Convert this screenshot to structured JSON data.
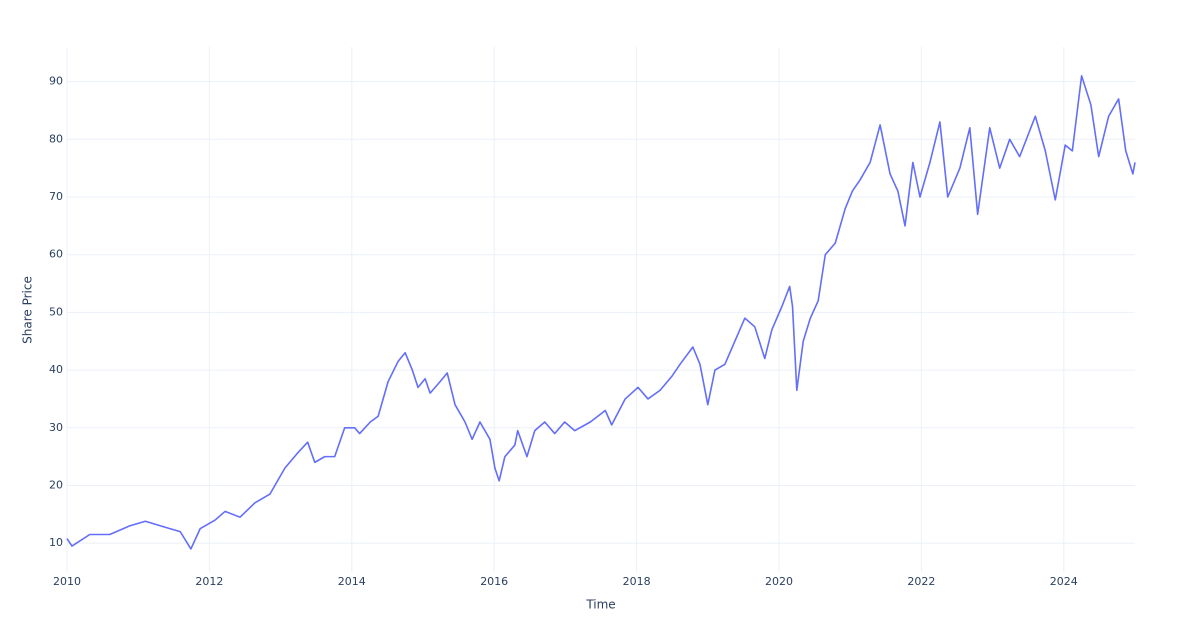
{
  "chart_data": {
    "type": "line",
    "xlabel": "Time",
    "ylabel": "Share Price",
    "xlim": [
      2010,
      2025
    ],
    "ylim": [
      5,
      96
    ],
    "xticks": [
      2010,
      2012,
      2014,
      2016,
      2018,
      2020,
      2022,
      2024
    ],
    "yticks": [
      10,
      20,
      30,
      40,
      50,
      60,
      70,
      80,
      90
    ],
    "grid": true,
    "x": [
      2010.0,
      2010.07,
      2010.32,
      2010.6,
      2010.88,
      2011.1,
      2011.45,
      2011.59,
      2011.74,
      2011.87,
      2012.08,
      2012.22,
      2012.43,
      2012.64,
      2012.85,
      2013.06,
      2013.23,
      2013.38,
      2013.48,
      2013.62,
      2013.76,
      2013.9,
      2014.04,
      2014.11,
      2014.26,
      2014.37,
      2014.51,
      2014.65,
      2014.75,
      2014.85,
      2014.93,
      2015.03,
      2015.1,
      2015.24,
      2015.34,
      2015.45,
      2015.59,
      2015.69,
      2015.8,
      2015.94,
      2016.01,
      2016.07,
      2016.15,
      2016.29,
      2016.33,
      2016.46,
      2016.57,
      2016.71,
      2016.85,
      2016.99,
      2017.13,
      2017.35,
      2017.56,
      2017.65,
      2017.84,
      2018.02,
      2018.16,
      2018.33,
      2018.5,
      2018.61,
      2018.79,
      2018.89,
      2019.0,
      2019.1,
      2019.24,
      2019.38,
      2019.52,
      2019.66,
      2019.8,
      2019.9,
      2020.04,
      2020.15,
      2020.19,
      2020.25,
      2020.34,
      2020.44,
      2020.55,
      2020.65,
      2020.79,
      2020.93,
      2021.03,
      2021.14,
      2021.28,
      2021.42,
      2021.56,
      2021.67,
      2021.77,
      2021.88,
      2021.98,
      2022.12,
      2022.26,
      2022.37,
      2022.54,
      2022.68,
      2022.79,
      2022.96,
      2023.1,
      2023.24,
      2023.38,
      2023.6,
      2023.74,
      2023.88,
      2024.02,
      2024.12,
      2024.25,
      2024.38,
      2024.49,
      2024.63,
      2024.77,
      2024.87,
      2024.97,
      2025.0
    ],
    "series": [
      {
        "color": "#636efa",
        "values": [
          10.8,
          9.5,
          11.5,
          11.5,
          13,
          13.8,
          12.5,
          12,
          9,
          12.5,
          14,
          15.5,
          14.5,
          17,
          18.5,
          23,
          25.5,
          27.5,
          24,
          25,
          25,
          30,
          30,
          29,
          31,
          32,
          38,
          41.5,
          43,
          40,
          37,
          38.5,
          36,
          38,
          39.5,
          34,
          31,
          28,
          31,
          28,
          23,
          20.8,
          25,
          27,
          29.5,
          25,
          29.5,
          31,
          29,
          31,
          29.5,
          31,
          33,
          30.5,
          35,
          37,
          35,
          36.5,
          39,
          41,
          44,
          41,
          34,
          40,
          41,
          45,
          49,
          47.5,
          42,
          47,
          51,
          54.5,
          51,
          36.5,
          45,
          49,
          52,
          60,
          62,
          68,
          71,
          73,
          76,
          82.5,
          74,
          71,
          65,
          76,
          70,
          76,
          83,
          70,
          75,
          82,
          67,
          82,
          75,
          80,
          77,
          84,
          78,
          69.5,
          79,
          78,
          91,
          86,
          77,
          84,
          87,
          78,
          74,
          76
        ]
      }
    ]
  }
}
